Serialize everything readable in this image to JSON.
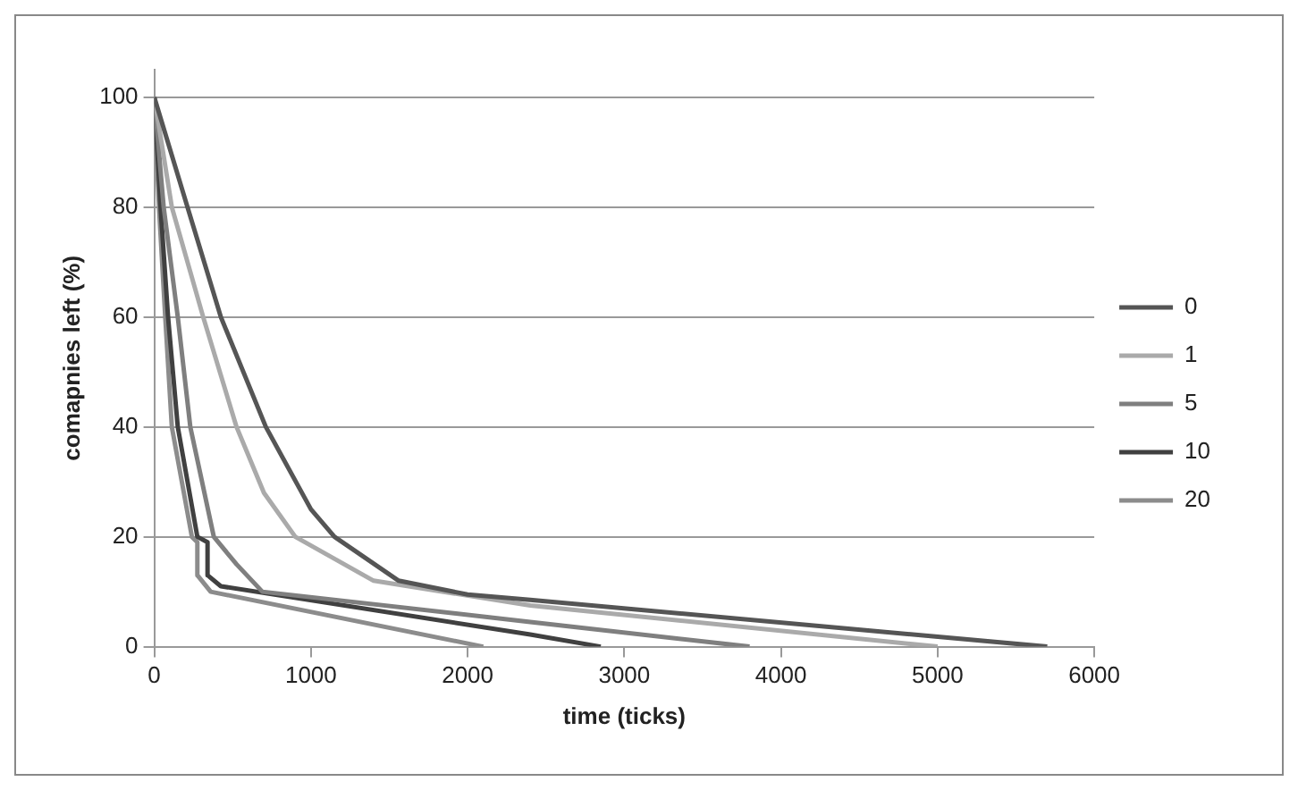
{
  "chart_data": {
    "type": "line",
    "xlabel": "time (ticks)",
    "ylabel": "comapnies left (%)",
    "xlim": [
      0,
      6000
    ],
    "xticks": [
      0,
      1000,
      2000,
      3000,
      4000,
      5000,
      6000
    ],
    "ylim": [
      0,
      105
    ],
    "yticks": [
      0,
      20,
      40,
      60,
      80,
      100
    ],
    "grid": "y",
    "legend": "right",
    "marker": "none",
    "line_style": "solid",
    "series": [
      {
        "name": "0",
        "color": "#555555",
        "x": [
          0,
          212,
          425,
          712,
          1000,
          1150,
          1560,
          2000,
          2400,
          5700
        ],
        "values": [
          100,
          80,
          60,
          40,
          25,
          20,
          12,
          9.5,
          8.5,
          0
        ]
      },
      {
        "name": "1",
        "color": "#aaaaaa",
        "x": [
          0,
          112,
          312,
          525,
          700,
          900,
          1400,
          2400,
          5000
        ],
        "values": [
          100,
          80,
          60,
          40,
          28,
          20,
          12,
          7.5,
          0
        ]
      },
      {
        "name": "5",
        "color": "#7f7f7f",
        "x": [
          0,
          60,
          150,
          230,
          380,
          525,
          690,
          2400,
          3800
        ],
        "values": [
          100,
          80,
          60,
          40,
          20,
          15,
          10,
          4.5,
          0
        ]
      },
      {
        "name": "10",
        "color": "#404040",
        "x": [
          0,
          40,
          88,
          150,
          275,
          340,
          340,
          425,
          2400,
          2850
        ],
        "values": [
          100,
          80,
          60,
          40,
          20,
          19,
          13,
          11,
          2.2,
          0
        ]
      },
      {
        "name": "20",
        "color": "#8c8c8c",
        "x": [
          0,
          30,
          70,
          112,
          240,
          275,
          275,
          360,
          2100
        ],
        "values": [
          100,
          80,
          60,
          40,
          20,
          19,
          13,
          10,
          0
        ]
      }
    ]
  }
}
